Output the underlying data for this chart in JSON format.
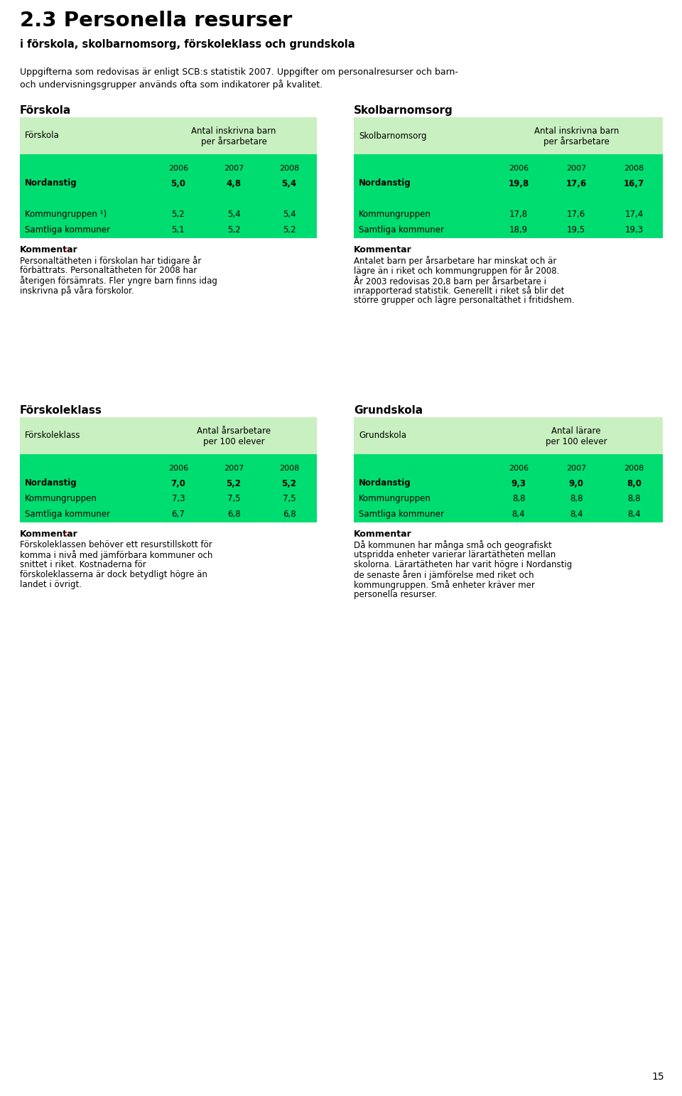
{
  "title_main": "2.3 Personella resurser",
  "title_sub": "i förskola, skolbarnomsorg, förskoleklass och grundskola",
  "intro_text1": "Uppgifterna som redovisas är enligt SCB:s statistik 2007. Uppgifter om personalresurser och barn-",
  "intro_text2": "och undervisningsgrupper används ofta som indikatorer på kvalitet.",
  "forskola_section_title": "Förskola",
  "forskola_table_header_col1": "Förskola",
  "forskola_table_header_col2_line1": "Antal inskrivna barn",
  "forskola_table_header_col2_line2": "per årsarbetare",
  "forskola_years": [
    "2006",
    "2007",
    "2008"
  ],
  "forskola_rows": [
    {
      "name": "Nordanstig",
      "values": [
        "5,0",
        "4,8",
        "5,4"
      ],
      "bold": true
    },
    {
      "name": "",
      "values": [
        "",
        "",
        ""
      ],
      "bold": false
    },
    {
      "name": "Kommungruppen ¹)",
      "values": [
        "5,2",
        "5,4",
        "5,4"
      ],
      "bold": false
    },
    {
      "name": "Samtliga kommuner",
      "values": [
        "5,1",
        "5,2",
        "5,2"
      ],
      "bold": false
    }
  ],
  "forskola_comment_bold": "Kommentar",
  "forskola_comment_colon_red": true,
  "forskola_comment_lines": [
    "Personaltätheten i förskolan har tidigare år",
    "förbättrats. Personaltätheten för 2008 har",
    "återigen försämrats. Fler yngre barn finns idag",
    "inskrivna på våra förskolor."
  ],
  "skolbarnomsorg_section_title": "Skolbarnomsorg",
  "skolbarnomsorg_table_header_col1": "Skolbarnomsorg",
  "skolbarnomsorg_table_header_col2_line1": "Antal inskrivna barn",
  "skolbarnomsorg_table_header_col2_line2": "per årsarbetare",
  "skolbarnomsorg_years": [
    "2006",
    "2007",
    "2008"
  ],
  "skolbarnomsorg_rows": [
    {
      "name": "Nordanstig",
      "values": [
        "19,8",
        "17,6",
        "16,7"
      ],
      "bold": true
    },
    {
      "name": "",
      "values": [
        "",
        "",
        ""
      ],
      "bold": false
    },
    {
      "name": "Kommungruppen",
      "values": [
        "17,8",
        "17,6",
        "17,4"
      ],
      "bold": false
    },
    {
      "name": "Samtliga kommuner",
      "values": [
        "18,9",
        "19,5",
        "19,3"
      ],
      "bold": false
    }
  ],
  "skolbarnomsorg_comment_bold": "Kommentar",
  "skolbarnomsorg_comment_colon_red": false,
  "skolbarnomsorg_comment_lines": [
    "Antalet barn per årsarbetare har minskat och är",
    "lägre än i riket och kommungruppen för år 2008.",
    "År 2003 redovisas 20,8 barn per årsarbetare i",
    "inrapporterad statistik. Generellt i riket så blir det",
    "större grupper och lägre personaltäthet i fritidshem."
  ],
  "forskoleklass_section_title": "Förskoleklass",
  "forskoleklass_table_header_col1": "Förskoleklass",
  "forskoleklass_table_header_col2_line1": "Antal årsarbetare",
  "forskoleklass_table_header_col2_line2": "per 100 elever",
  "forskoleklass_years": [
    "2006",
    "2007",
    "2008"
  ],
  "forskoleklass_rows": [
    {
      "name": "Nordanstig",
      "values": [
        "7,0",
        "5,2",
        "5,2"
      ],
      "bold": true
    },
    {
      "name": "Kommungruppen",
      "values": [
        "7,3",
        "7,5",
        "7,5"
      ],
      "bold": false
    },
    {
      "name": "Samtliga kommuner",
      "values": [
        "6,7",
        "6,8",
        "6,8"
      ],
      "bold": false
    }
  ],
  "forskoleklass_comment_bold": "Kommentar",
  "forskoleklass_comment_colon_red": true,
  "forskoleklass_comment_lines": [
    "Förskoleklassen behöver ett resurstillskott för",
    "komma i nivå med jämförbara kommuner och",
    "snittet i riket. Kostnaderna för",
    "förskoleklasserna är dock betydligt högre än",
    "landet i övrigt."
  ],
  "grundskola_section_title": "Grundskola",
  "grundskola_table_header_col1": "Grundskola",
  "grundskola_table_header_col2_line1": "Antal lärare",
  "grundskola_table_header_col2_line2": "per 100 elever",
  "grundskola_years": [
    "2006",
    "2007",
    "2008"
  ],
  "grundskola_rows": [
    {
      "name": "Nordanstig",
      "values": [
        "9,3",
        "9,0",
        "8,0"
      ],
      "bold": true
    },
    {
      "name": "Kommungruppen",
      "values": [
        "8,8",
        "8,8",
        "8,8"
      ],
      "bold": false
    },
    {
      "name": "Samtliga kommuner",
      "values": [
        "8,4",
        "8,4",
        "8,4"
      ],
      "bold": false
    }
  ],
  "grundskola_comment_bold": "Kommentar",
  "grundskola_comment_colon_red": false,
  "grundskola_comment_lines": [
    "Då kommunen har många små och geografiskt",
    "utspridda enheter varierar lärartätheten mellan",
    "skolorna. Lärartätheten har varit högre i Nordanstig",
    "de senaste åren i jämförelse med riket och",
    "kommungruppen. Små enheter kräver mer",
    "personella resurser."
  ],
  "page_number": "15",
  "color_light_green": "#c8f0c0",
  "color_bright_green": "#00dd70",
  "color_red": "#cc0000",
  "color_black": "#1a1a1a"
}
